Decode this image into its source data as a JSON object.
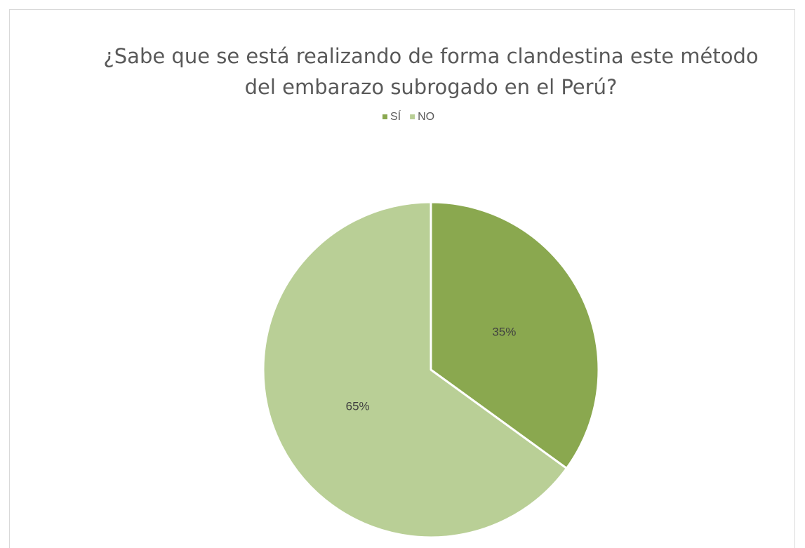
{
  "chart_data": {
    "type": "pie",
    "title": "¿Sabe que se está realizando de forma clandestina este método del embarazo subrogado en el Perú?",
    "categories": [
      "SÍ",
      "NO"
    ],
    "values": [
      35,
      65
    ],
    "value_labels": [
      "35%",
      "65%"
    ],
    "colors": [
      "#8aa84f",
      "#b9cf96"
    ],
    "legend": "top"
  }
}
